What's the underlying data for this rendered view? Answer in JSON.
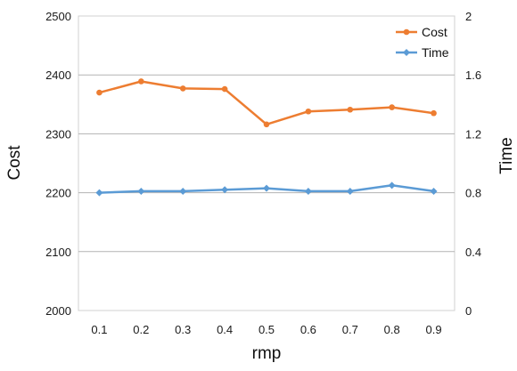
{
  "chart_data": {
    "type": "line",
    "title": "",
    "xlabel": "rmp",
    "ylabel": "Cost",
    "y2label": "Time",
    "categories": [
      "0.1",
      "0.2",
      "0.3",
      "0.4",
      "0.5",
      "0.6",
      "0.7",
      "0.8",
      "0.9"
    ],
    "ylim": [
      2000,
      2500
    ],
    "y2lim": [
      0,
      2
    ],
    "yticks": [
      "2000",
      "2100",
      "2200",
      "2300",
      "2400",
      "2500"
    ],
    "y2ticks": [
      "0",
      "0.4",
      "0.8",
      "1.2",
      "1.6",
      "2"
    ],
    "grid": "horizontal",
    "legend": "top-right",
    "series": [
      {
        "name": "Cost",
        "axis": "left",
        "color": "#ED7D31",
        "marker": "circle",
        "values": [
          2370,
          2389,
          2377,
          2376,
          2316,
          2338,
          2341,
          2345,
          2335
        ]
      },
      {
        "name": "Time",
        "axis": "right",
        "color": "#5B9BD5",
        "marker": "diamond",
        "values": [
          0.8,
          0.81,
          0.81,
          0.82,
          0.83,
          0.81,
          0.81,
          0.85,
          0.81
        ]
      }
    ]
  }
}
